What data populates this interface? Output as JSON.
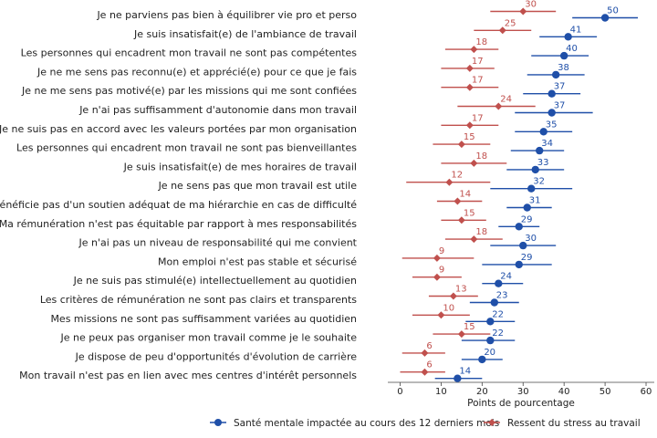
{
  "chart_data": {
    "type": "dot-errorbar",
    "categories": [
      "Je ne parviens pas bien à équilibrer vie pro et perso",
      "Je suis insatisfait(e) de l'ambiance de travail",
      "Les personnes qui encadrent mon travail ne sont pas compétentes",
      "Je ne me sens pas reconnu(e) et apprécié(e) pour ce que je fais",
      "Je ne me sens pas motivé(e) par les missions qui me sont confiées",
      "Je n'ai pas suffisamment d'autonomie dans mon travail",
      "Je ne suis pas en accord avec les valeurs portées par mon organisation",
      "Les personnes qui encadrent mon travail ne sont pas bienveillantes",
      "Je suis insatisfait(e) de mes horaires de travail",
      "Je ne sens pas que mon travail est utile",
      "Je ne bénéficie pas d'un soutien adéquat de ma hiérarchie en cas de difficulté",
      "Ma rémunération n'est pas équitable par rapport à mes responsabilités",
      "Je n'ai pas un niveau de responsabilité qui me convient",
      "Mon emploi n'est pas stable et sécurisé",
      "Je ne suis pas stimulé(e) intellectuellement au quotidien",
      "Les critères de rémunération ne sont pas clairs et transparents",
      "Mes missions ne sont pas suffisamment variées au quotidien",
      "Je ne peux pas organiser mon travail comme je le souhaite",
      "Je dispose de peu d'opportunités d'évolution de carrière",
      "Mon travail n'est pas en lien avec mes centres d'intérêt personnels"
    ],
    "series": [
      {
        "name": "Santé mentale impactée au cours des 12 derniers mois",
        "color": "#1f4fa8",
        "marker": "circle",
        "values": [
          50,
          41,
          40,
          38,
          37,
          37,
          35,
          34,
          33,
          32,
          31,
          29,
          30,
          29,
          24,
          23,
          22,
          22,
          20,
          14
        ],
        "labels": [
          "50",
          "41",
          "40",
          "38",
          "37",
          "37",
          "35",
          "34",
          "33",
          "32",
          "31",
          "29",
          "30",
          "29",
          "24",
          "23",
          "22",
          "22",
          "20",
          "14"
        ],
        "ci_low": [
          42,
          34,
          32,
          31,
          30,
          28,
          28,
          27,
          26,
          22,
          26,
          24,
          22,
          20,
          20,
          17,
          16,
          15,
          15,
          8.5
        ],
        "ci_high": [
          58,
          48,
          46,
          45,
          44,
          47,
          42,
          40,
          40,
          42,
          37,
          34,
          38,
          37,
          30,
          29,
          28,
          28,
          25,
          20
        ]
      },
      {
        "name": "Ressent du stress au travail",
        "color": "#c0504d",
        "marker": "diamond",
        "values": [
          30,
          25,
          18,
          17,
          17,
          24,
          17,
          15,
          18,
          12,
          14,
          15,
          18,
          9,
          9,
          13,
          10,
          15,
          6,
          6
        ],
        "labels": [
          "30",
          "25",
          "18",
          "17",
          "17",
          "24",
          "17",
          "15",
          "18",
          "12",
          "14",
          "15",
          "18",
          "9",
          "9",
          "13",
          "10",
          "15",
          "6",
          "6"
        ],
        "ci_low": [
          22,
          18,
          11,
          10,
          10,
          14,
          10,
          8,
          10,
          1.5,
          9,
          10,
          11,
          0.5,
          3,
          7,
          3,
          8,
          0.5,
          0
        ],
        "ci_high": [
          38,
          32,
          24,
          23,
          24,
          33,
          24,
          22,
          26,
          22,
          20,
          21,
          25,
          18,
          15,
          19,
          17,
          22,
          11,
          11
        ]
      }
    ],
    "xlabel": "Points de pourcentage",
    "xlim": [
      -3,
      62
    ],
    "xticks": [
      0,
      10,
      20,
      30,
      40,
      50,
      60
    ],
    "grid": false,
    "legend_position": "bottom-center"
  }
}
